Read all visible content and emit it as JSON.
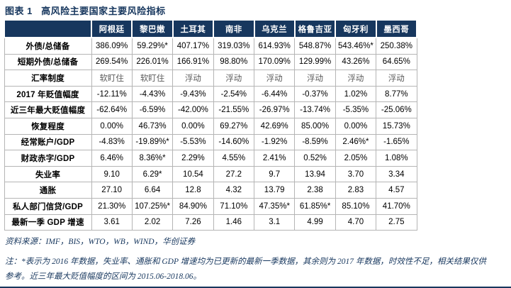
{
  "chart_data": {
    "type": "table",
    "title": "图表 1   高风险主要国家主要风险指标",
    "columns": [
      "阿根廷",
      "黎巴嫩",
      "土耳其",
      "南非",
      "乌克兰",
      "格鲁吉亚",
      "匈牙利",
      "墨西哥"
    ],
    "rows": [
      {
        "label": "外债/总储备",
        "values": [
          "386.09%",
          "59.29%*",
          "407.17%",
          "319.03%",
          "614.93%",
          "548.87%",
          "543.46%*",
          "250.38%"
        ],
        "muted": false
      },
      {
        "label": "短期外债/总储备",
        "values": [
          "269.54%",
          "226.01%",
          "166.91%",
          "98.80%",
          "170.09%",
          "129.99%",
          "43.26%",
          "64.65%"
        ],
        "muted": false
      },
      {
        "label": "汇率制度",
        "values": [
          "软盯住",
          "软盯住",
          "浮动",
          "浮动",
          "浮动",
          "浮动",
          "浮动",
          "浮动"
        ],
        "muted": true
      },
      {
        "label": "2017 年贬值幅度",
        "values": [
          "-12.11%",
          "-4.43%",
          "-9.43%",
          "-2.54%",
          "-6.44%",
          "-0.37%",
          "1.02%",
          "8.77%"
        ],
        "muted": false
      },
      {
        "label": "近三年最大贬值幅度",
        "values": [
          "-62.64%",
          "-6.59%",
          "-42.00%",
          "-21.55%",
          "-26.97%",
          "-13.74%",
          "-5.35%",
          "-25.06%"
        ],
        "muted": false
      },
      {
        "label": "恢复程度",
        "values": [
          "0.00%",
          "46.73%",
          "0.00%",
          "69.27%",
          "42.69%",
          "85.00%",
          "0.00%",
          "15.73%"
        ],
        "muted": false
      },
      {
        "label": "经常账户/GDP",
        "values": [
          "-4.83%",
          "-19.89%*",
          "-5.53%",
          "-14.60%",
          "-1.92%",
          "-8.59%",
          "2.46%*",
          "-1.65%"
        ],
        "muted": false
      },
      {
        "label": "财政赤字/GDP",
        "values": [
          "6.46%",
          "8.36%*",
          "2.29%",
          "4.55%",
          "2.41%",
          "0.52%",
          "2.05%",
          "1.08%"
        ],
        "muted": false
      },
      {
        "label": "失业率",
        "values": [
          "9.10",
          "6.29*",
          "10.54",
          "27.2",
          "9.7",
          "13.94",
          "3.70",
          "3.34"
        ],
        "muted": false
      },
      {
        "label": "通胀",
        "values": [
          "27.10",
          "6.64",
          "12.8",
          "4.32",
          "13.79",
          "2.38",
          "2.83",
          "4.57"
        ],
        "muted": false
      },
      {
        "label": "私人部门信贷/GDP",
        "values": [
          "21.30%",
          "107.25%*",
          "84.90%",
          "71.10%",
          "47.35%*",
          "61.85%*",
          "85.10%",
          "41.70%"
        ],
        "muted": false
      },
      {
        "label": "最新一季 GDP 增速",
        "values": [
          "3.61",
          "2.02",
          "7.26",
          "1.46",
          "3.1",
          "4.99",
          "4.70",
          "2.75"
        ],
        "muted": false
      }
    ],
    "source": "资料来源：IMF，BIS，WTO，WB，WIND，华创证券",
    "notes": [
      "注：*表示为 2016 年数据，失业率、通胀和 GDP 增速均为已更新的最新一季数据，其余则为 2017 年数据，时效性不足，相关结果仅供",
      "参考。近三年最大贬值幅度的区间为 2015.06-2018.06。"
    ],
    "colors": {
      "header_navy": "#17375e",
      "border_gray": "#b5b5b5",
      "muted_text": "#595959",
      "note_navy": "#17375e"
    },
    "layout": {
      "legend": "none",
      "grid": "on"
    }
  }
}
